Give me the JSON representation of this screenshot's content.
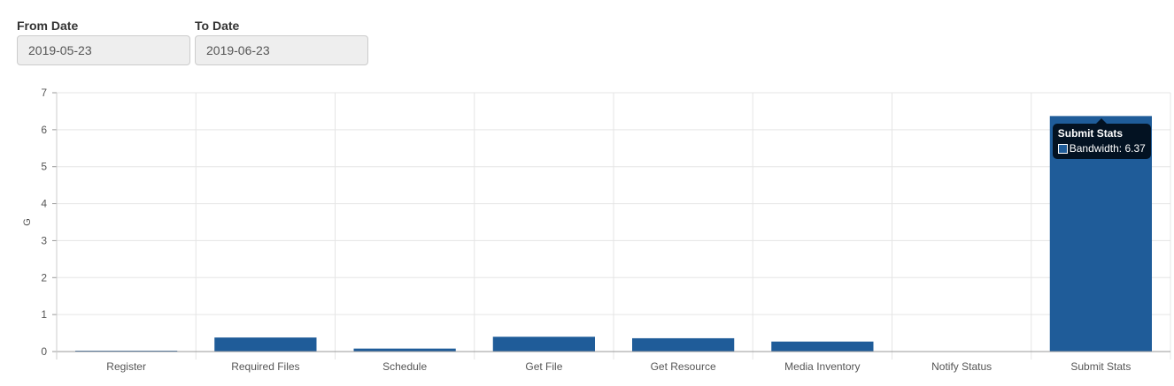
{
  "filters": {
    "from_date": {
      "label": "From Date",
      "value": "2019-05-23"
    },
    "to_date": {
      "label": "To Date",
      "value": "2019-06-23"
    }
  },
  "tooltip": {
    "title": "Submit Stats",
    "series": "Bandwidth",
    "value_text": "Bandwidth: 6.37"
  },
  "colors": {
    "bar": "#1f5c99",
    "grid": "#e5e5e5",
    "axis": "#999999"
  },
  "chart_data": {
    "type": "bar",
    "title": "",
    "xlabel": "",
    "ylabel": "G",
    "ylim": [
      0,
      7
    ],
    "yticks": [
      0,
      1,
      2,
      3,
      4,
      5,
      6,
      7
    ],
    "grid": true,
    "legend": "none",
    "categories": [
      "Register",
      "Required Files",
      "Schedule",
      "Get File",
      "Get Resource",
      "Media Inventory",
      "Notify Status",
      "Submit Stats"
    ],
    "series": [
      {
        "name": "Bandwidth",
        "values": [
          0.01,
          0.38,
          0.08,
          0.4,
          0.36,
          0.27,
          0.0,
          6.37
        ]
      }
    ]
  }
}
